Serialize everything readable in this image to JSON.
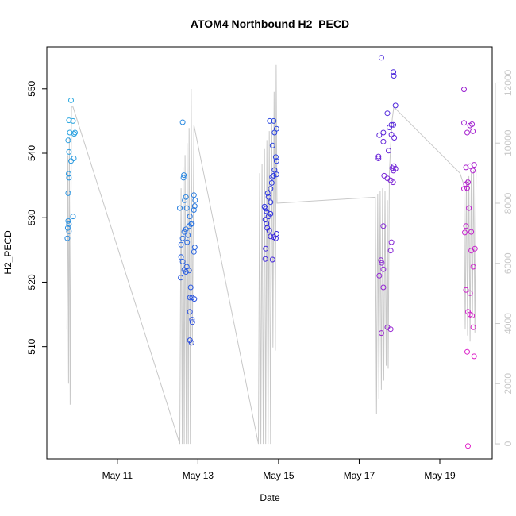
{
  "chart_data": {
    "type": "scatter",
    "title": "ATOM4 Northbound H2_PECD",
    "xlabel": "Date",
    "ylabel": "H2_PECD",
    "x_ticks": [
      "May 11",
      "May 13",
      "May 15",
      "May 17",
      "May 19"
    ],
    "y_ticks": [
      510,
      520,
      530,
      540,
      550
    ],
    "y2_ticks": [
      0,
      2000,
      4000,
      6000,
      8000,
      10000,
      12000
    ],
    "x_range_days": [
      9.25,
      20.3
    ],
    "ylim": [
      492.6,
      556.5
    ],
    "y2lim": [
      -500,
      13200
    ],
    "grid": false,
    "legend": "none",
    "point_color_start": "#29a8e0",
    "point_color_mid": "#2a2ae0",
    "point_color_end": "#e020c8",
    "line_color": "#c8c8c8",
    "series": [
      {
        "values": [
          [
            9.85,
            548.2
          ],
          [
            9.8,
            545.1
          ],
          [
            9.9,
            545.0
          ],
          [
            9.82,
            543.2
          ],
          [
            9.93,
            543.0
          ],
          [
            9.95,
            543.2
          ],
          [
            9.78,
            542.0
          ],
          [
            9.8,
            540.2
          ],
          [
            9.92,
            539.2
          ],
          [
            9.85,
            538.8
          ],
          [
            9.79,
            536.8
          ],
          [
            9.8,
            536.2
          ],
          [
            9.78,
            533.8
          ],
          [
            9.9,
            530.2
          ],
          [
            9.78,
            529.5
          ],
          [
            9.8,
            529.0
          ],
          [
            9.77,
            528.4
          ],
          [
            9.8,
            527.9
          ],
          [
            9.76,
            526.8
          ],
          [
            12.62,
            544.8
          ],
          [
            12.65,
            536.6
          ],
          [
            12.64,
            536.2
          ],
          [
            12.7,
            533.2
          ],
          [
            12.67,
            532.7
          ],
          [
            12.55,
            531.5
          ],
          [
            12.72,
            531.5
          ],
          [
            12.9,
            533.5
          ],
          [
            12.93,
            532.7
          ],
          [
            12.92,
            531.8
          ],
          [
            12.9,
            531.2
          ],
          [
            12.8,
            530.2
          ],
          [
            12.85,
            529.1
          ],
          [
            12.83,
            529.0
          ],
          [
            12.78,
            528.7
          ],
          [
            12.7,
            528.2
          ],
          [
            12.66,
            527.8
          ],
          [
            12.75,
            527.3
          ],
          [
            12.62,
            526.8
          ],
          [
            12.73,
            526.2
          ],
          [
            12.58,
            525.8
          ],
          [
            12.92,
            525.4
          ],
          [
            12.9,
            524.7
          ],
          [
            12.58,
            523.9
          ],
          [
            12.62,
            523.2
          ],
          [
            12.72,
            522.4
          ],
          [
            12.66,
            521.9
          ],
          [
            12.7,
            521.6
          ],
          [
            12.78,
            521.8
          ],
          [
            12.57,
            520.7
          ],
          [
            12.82,
            519.2
          ],
          [
            12.8,
            517.6
          ],
          [
            12.85,
            517.6
          ],
          [
            12.91,
            517.4
          ],
          [
            12.8,
            515.4
          ],
          [
            12.85,
            514.2
          ],
          [
            12.86,
            513.8
          ],
          [
            12.8,
            511.0
          ],
          [
            12.84,
            510.6
          ],
          [
            14.78,
            545.0
          ],
          [
            14.88,
            545.0
          ],
          [
            14.95,
            543.8
          ],
          [
            14.9,
            543.2
          ],
          [
            14.85,
            541.2
          ],
          [
            14.93,
            539.4
          ],
          [
            14.95,
            538.8
          ],
          [
            14.9,
            537.4
          ],
          [
            14.95,
            536.7
          ],
          [
            14.88,
            536.5
          ],
          [
            14.84,
            536.3
          ],
          [
            14.83,
            535.4
          ],
          [
            14.8,
            534.5
          ],
          [
            14.73,
            533.8
          ],
          [
            14.75,
            533.2
          ],
          [
            14.8,
            532.4
          ],
          [
            14.65,
            531.7
          ],
          [
            14.68,
            531.4
          ],
          [
            14.7,
            531.0
          ],
          [
            14.8,
            530.6
          ],
          [
            14.75,
            530.2
          ],
          [
            14.67,
            529.7
          ],
          [
            14.7,
            529.1
          ],
          [
            14.72,
            528.4
          ],
          [
            14.77,
            528.0
          ],
          [
            14.95,
            527.5
          ],
          [
            14.8,
            527.1
          ],
          [
            14.93,
            526.8
          ],
          [
            14.88,
            527.0
          ],
          [
            14.68,
            525.2
          ],
          [
            14.67,
            523.6
          ],
          [
            14.85,
            523.5
          ],
          [
            17.55,
            554.8
          ],
          [
            17.85,
            552.6
          ],
          [
            17.86,
            552.0
          ],
          [
            17.9,
            547.4
          ],
          [
            17.7,
            546.2
          ],
          [
            17.8,
            544.4
          ],
          [
            17.85,
            544.4
          ],
          [
            17.75,
            544.0
          ],
          [
            17.6,
            543.2
          ],
          [
            17.5,
            542.8
          ],
          [
            17.8,
            542.9
          ],
          [
            17.87,
            542.4
          ],
          [
            17.6,
            541.8
          ],
          [
            17.73,
            540.4
          ],
          [
            17.48,
            539.5
          ],
          [
            17.48,
            539.2
          ],
          [
            17.86,
            538.0
          ],
          [
            17.82,
            537.7
          ],
          [
            17.9,
            537.6
          ],
          [
            17.85,
            537.3
          ],
          [
            17.62,
            536.5
          ],
          [
            17.7,
            536.1
          ],
          [
            17.78,
            535.8
          ],
          [
            17.84,
            535.5
          ],
          [
            17.6,
            528.7
          ],
          [
            17.8,
            526.2
          ],
          [
            17.78,
            524.9
          ],
          [
            17.54,
            523.4
          ],
          [
            17.56,
            523.0
          ],
          [
            17.6,
            522.0
          ],
          [
            17.5,
            521.0
          ],
          [
            17.6,
            519.2
          ],
          [
            17.7,
            513.0
          ],
          [
            17.78,
            512.7
          ],
          [
            17.55,
            512.1
          ],
          [
            19.6,
            549.9
          ],
          [
            19.6,
            544.7
          ],
          [
            19.8,
            544.5
          ],
          [
            19.75,
            544.3
          ],
          [
            19.82,
            543.4
          ],
          [
            19.68,
            543.2
          ],
          [
            19.85,
            538.2
          ],
          [
            19.65,
            537.8
          ],
          [
            19.75,
            538.0
          ],
          [
            19.82,
            537.3
          ],
          [
            19.7,
            535.5
          ],
          [
            19.65,
            535.2
          ],
          [
            19.6,
            534.5
          ],
          [
            19.68,
            534.6
          ],
          [
            19.72,
            531.5
          ],
          [
            19.65,
            528.7
          ],
          [
            19.78,
            527.8
          ],
          [
            19.62,
            527.7
          ],
          [
            19.87,
            525.2
          ],
          [
            19.78,
            524.9
          ],
          [
            19.83,
            522.4
          ],
          [
            19.65,
            518.8
          ],
          [
            19.75,
            518.3
          ],
          [
            19.7,
            515.4
          ],
          [
            19.75,
            515.0
          ],
          [
            19.8,
            514.8
          ],
          [
            19.83,
            513.0
          ],
          [
            19.68,
            509.2
          ],
          [
            19.85,
            508.5
          ],
          [
            19.7,
            494.6
          ]
        ]
      },
      {
        "axis": "right",
        "style": "line",
        "values": [
          [
            9.75,
            3800
          ],
          [
            9.77,
            9600
          ],
          [
            9.79,
            2000
          ],
          [
            9.81,
            10200
          ],
          [
            9.83,
            1300
          ],
          [
            9.86,
            11200
          ],
          [
            9.9,
            11200
          ],
          [
            12.55,
            0
          ],
          [
            12.58,
            8500
          ],
          [
            12.61,
            0
          ],
          [
            12.63,
            9200
          ],
          [
            12.66,
            0
          ],
          [
            12.68,
            9600
          ],
          [
            12.71,
            0
          ],
          [
            12.73,
            10000
          ],
          [
            12.76,
            0
          ],
          [
            12.78,
            10500
          ],
          [
            12.81,
            0
          ],
          [
            12.83,
            11800
          ],
          [
            12.86,
            3300
          ],
          [
            12.9,
            10600
          ],
          [
            14.5,
            0
          ],
          [
            14.53,
            9000
          ],
          [
            14.56,
            0
          ],
          [
            14.59,
            9300
          ],
          [
            14.62,
            0
          ],
          [
            14.65,
            9800
          ],
          [
            14.68,
            0
          ],
          [
            14.71,
            10100
          ],
          [
            14.74,
            0
          ],
          [
            14.77,
            10400
          ],
          [
            14.8,
            0
          ],
          [
            14.83,
            10700
          ],
          [
            14.86,
            3200
          ],
          [
            14.89,
            11700
          ],
          [
            14.92,
            3100
          ],
          [
            14.94,
            12600
          ],
          [
            14.96,
            8000
          ],
          [
            17.4,
            8200
          ],
          [
            17.43,
            1000
          ],
          [
            17.46,
            8300
          ],
          [
            17.49,
            1500
          ],
          [
            17.52,
            8400
          ],
          [
            17.55,
            1800
          ],
          [
            17.58,
            8500
          ],
          [
            17.61,
            2100
          ],
          [
            17.64,
            8400
          ],
          [
            17.67,
            2600
          ],
          [
            17.7,
            8100
          ],
          [
            17.72,
            2500
          ],
          [
            17.75,
            9000
          ],
          [
            17.78,
            9900
          ],
          [
            17.82,
            10800
          ],
          [
            17.86,
            11200
          ],
          [
            19.5,
            9000
          ],
          [
            19.55,
            8800
          ],
          [
            19.6,
            8600
          ],
          [
            19.63,
            3800
          ],
          [
            19.66,
            8800
          ],
          [
            19.69,
            3600
          ],
          [
            19.72,
            8900
          ],
          [
            19.75,
            3400
          ],
          [
            19.78,
            9000
          ],
          [
            19.81,
            4200
          ],
          [
            19.84,
            9100
          ],
          [
            19.87,
            3700
          ],
          [
            19.9,
            9100
          ]
        ]
      }
    ]
  }
}
